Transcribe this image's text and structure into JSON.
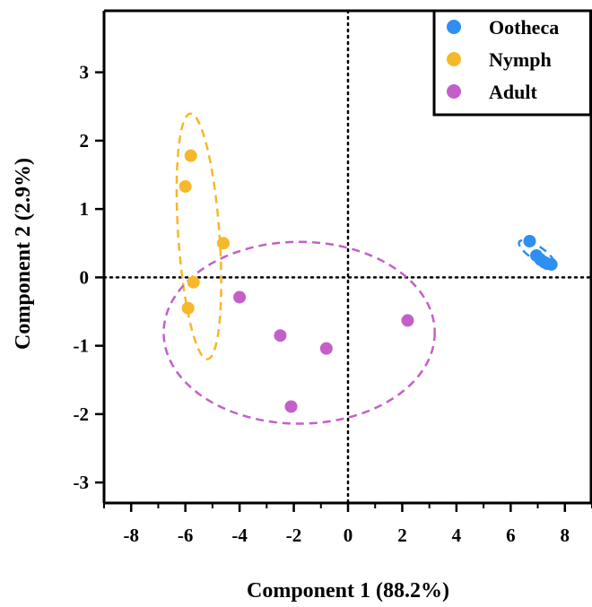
{
  "chart_data": {
    "type": "scatter",
    "title": "",
    "xlabel": "Component 1 (88.2%)",
    "ylabel": "Component 2 (2.9%)",
    "xlim": [
      -9,
      9
    ],
    "ylim": [
      -3.3,
      3.9
    ],
    "xticks": [
      -8,
      -6,
      -4,
      -2,
      0,
      2,
      4,
      6,
      8
    ],
    "yticks": [
      -3,
      -2,
      -1,
      0,
      1,
      2,
      3
    ],
    "grid": false,
    "reference_lines": {
      "x": 0,
      "y": 0,
      "style": "dotted"
    },
    "legend_position": "top-right",
    "series": [
      {
        "name": "Ootheca",
        "color": "#2e8ff0",
        "points": [
          [
            6.7,
            0.53
          ],
          [
            6.95,
            0.32
          ],
          [
            7.1,
            0.26
          ],
          [
            7.25,
            0.22
          ],
          [
            7.35,
            0.2
          ],
          [
            7.5,
            0.19
          ]
        ],
        "ellipse": {
          "cx": 6.95,
          "cy": 0.36,
          "rx": 0.75,
          "ry": 0.1,
          "rotation_deg": 33
        }
      },
      {
        "name": "Nymph",
        "color": "#f5b82a",
        "points": [
          [
            -5.8,
            1.78
          ],
          [
            -6.0,
            1.33
          ],
          [
            -4.6,
            0.5
          ],
          [
            -5.7,
            -0.07
          ],
          [
            -5.9,
            -0.45
          ]
        ],
        "ellipse": {
          "cx": -5.5,
          "cy": 0.6,
          "rx": 0.76,
          "ry": 1.8,
          "rotation_deg": -4
        }
      },
      {
        "name": "Adult",
        "color": "#c45fc9",
        "points": [
          [
            -4.0,
            -0.29
          ],
          [
            -2.5,
            -0.85
          ],
          [
            -0.8,
            -1.04
          ],
          [
            2.2,
            -0.63
          ],
          [
            -2.1,
            -1.89
          ]
        ],
        "ellipse": {
          "cx": -1.8,
          "cy": -0.81,
          "rx": 5.0,
          "ry": 1.33,
          "rotation_deg": 0
        }
      }
    ]
  }
}
